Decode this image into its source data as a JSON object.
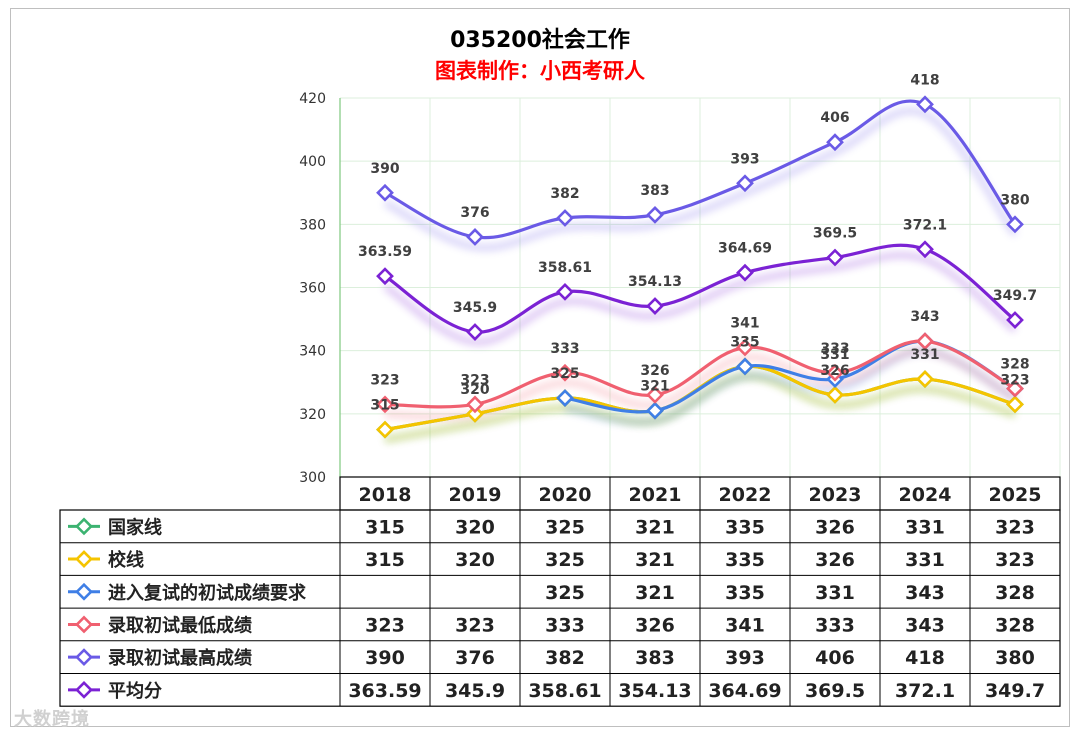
{
  "chart_data": {
    "type": "line",
    "title": "035200社会工作",
    "subtitle": "图表制作：小西考研人",
    "categories": [
      "2018",
      "2019",
      "2020",
      "2021",
      "2022",
      "2023",
      "2024",
      "2025"
    ],
    "ylim": [
      300,
      420
    ],
    "yticks": [
      300,
      320,
      340,
      360,
      380,
      400,
      420
    ],
    "grid": true,
    "legend": "data-table-below",
    "series": [
      {
        "name": "国家线",
        "color": "#3cb371",
        "values": [
          315,
          320,
          325,
          321,
          335,
          326,
          331,
          323
        ],
        "labels": [
          "",
          "",
          "",
          "",
          "",
          "",
          "",
          ""
        ]
      },
      {
        "name": "校线",
        "color": "#f5c400",
        "values": [
          315,
          320,
          325,
          321,
          335,
          326,
          331,
          323
        ],
        "labels": [
          "315",
          "320",
          "325",
          "",
          "",
          "326",
          "331",
          "323"
        ]
      },
      {
        "name": "进入复试的初试成绩要求",
        "color": "#3f7fe6",
        "values": [
          null,
          null,
          325,
          321,
          335,
          331,
          343,
          328
        ],
        "labels": [
          "",
          "",
          "",
          "321",
          "335",
          "331",
          "",
          ""
        ]
      },
      {
        "name": "录取初试最低成绩",
        "color": "#f06070",
        "values": [
          323,
          323,
          333,
          326,
          341,
          333,
          343,
          328
        ],
        "labels": [
          "323",
          "323",
          "333",
          "326",
          "341",
          "333",
          "343",
          "328"
        ]
      },
      {
        "name": "录取初试最高成绩",
        "color": "#6a5ae6",
        "values": [
          390,
          376,
          382,
          383,
          393,
          406,
          418,
          380
        ],
        "labels": [
          "390",
          "376",
          "382",
          "383",
          "393",
          "406",
          "418",
          "380"
        ]
      },
      {
        "name": "平均分",
        "color": "#7b22d4",
        "values": [
          363.59,
          345.9,
          358.61,
          354.13,
          364.69,
          369.5,
          372.1,
          349.7
        ],
        "labels": [
          "363.59",
          "345.9",
          "358.61",
          "354.13",
          "364.69",
          "369.5",
          "372.1",
          "349.7"
        ]
      }
    ],
    "table_rows": [
      [
        "315",
        "320",
        "325",
        "321",
        "335",
        "326",
        "331",
        "323"
      ],
      [
        "315",
        "320",
        "325",
        "321",
        "335",
        "326",
        "331",
        "323"
      ],
      [
        "",
        "",
        "325",
        "321",
        "335",
        "331",
        "343",
        "328"
      ],
      [
        "323",
        "323",
        "333",
        "326",
        "341",
        "333",
        "343",
        "328"
      ],
      [
        "390",
        "376",
        "382",
        "383",
        "393",
        "406",
        "418",
        "380"
      ],
      [
        "363.59",
        "345.9",
        "358.61",
        "354.13",
        "364.69",
        "369.5",
        "372.1",
        "349.7"
      ]
    ]
  },
  "watermark": "大数跨境"
}
